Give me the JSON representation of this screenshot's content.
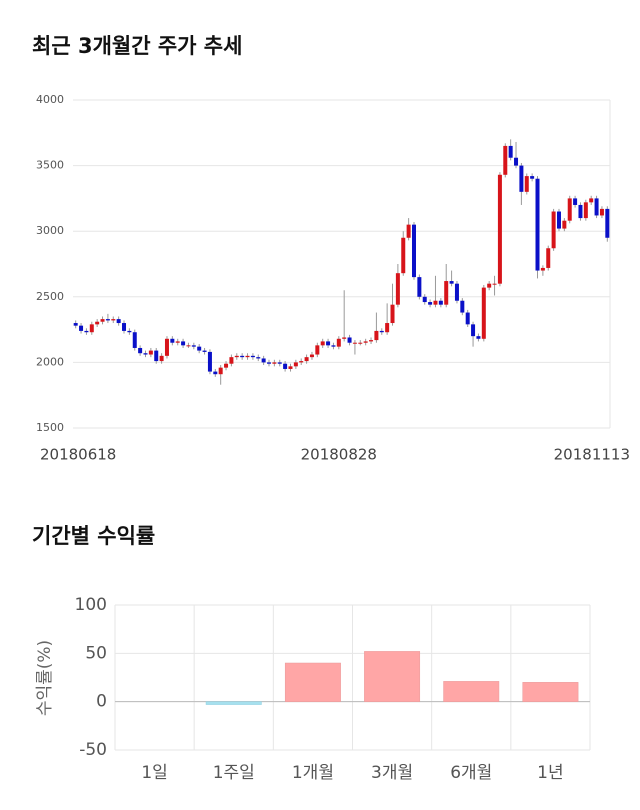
{
  "chart_data": [
    {
      "type": "candlestick",
      "title": "최근 3개월간 주가 추세",
      "categories": [
        "20180618",
        null,
        null,
        null,
        null,
        null,
        null,
        null,
        null,
        null,
        null,
        null,
        null,
        null,
        null,
        null,
        null,
        null,
        null,
        null,
        null,
        null,
        null,
        null,
        null,
        null,
        null,
        null,
        null,
        null,
        null,
        null,
        null,
        null,
        null,
        null,
        null,
        null,
        null,
        null,
        null,
        null,
        null,
        null,
        null,
        null,
        null,
        null,
        null,
        "20180828",
        null,
        null,
        null,
        null,
        null,
        null,
        null,
        null,
        null,
        null,
        null,
        null,
        null,
        null,
        null,
        null,
        null,
        null,
        null,
        null,
        null,
        null,
        null,
        null,
        null,
        null,
        null,
        null,
        null,
        null,
        null,
        null,
        null,
        null,
        null,
        null,
        null,
        null,
        null,
        null,
        null,
        null,
        null,
        null,
        null,
        null,
        null,
        null,
        null,
        "20181113"
      ],
      "open": [
        2300,
        2280,
        2240,
        2230,
        2290,
        2310,
        2330,
        2320,
        2330,
        2300,
        2240,
        2230,
        2110,
        2070,
        2060,
        2090,
        2010,
        2050,
        2180,
        2150,
        2160,
        2130,
        2130,
        2120,
        2090,
        2080,
        1930,
        1910,
        1960,
        1990,
        2040,
        2050,
        2040,
        2050,
        2040,
        2030,
        2000,
        1990,
        2000,
        1990,
        1950,
        1970,
        2000,
        2010,
        2040,
        2060,
        2130,
        2160,
        2130,
        2120,
        2180,
        2190,
        2150,
        2150,
        2150,
        2160,
        2170,
        2240,
        2230,
        2300,
        2440,
        2680,
        2950,
        3050,
        2650,
        2500,
        2460,
        2440,
        2470,
        2440,
        2620,
        2600,
        2470,
        2380,
        2290,
        2200,
        2180,
        2570,
        2600,
        2600,
        3430,
        3650,
        3560,
        3500,
        3300,
        3420,
        3400,
        2700,
        2720,
        2870,
        3150,
        3020,
        3080,
        3250,
        3200,
        3100,
        3220,
        3250,
        3120,
        3170
      ],
      "high": [
        2320,
        2300,
        2260,
        2310,
        2330,
        2350,
        2370,
        2350,
        2350,
        2320,
        2260,
        2250,
        2130,
        2090,
        2110,
        2110,
        2070,
        2200,
        2200,
        2180,
        2180,
        2150,
        2150,
        2140,
        2110,
        2100,
        1950,
        1980,
        2010,
        2060,
        2070,
        2070,
        2070,
        2070,
        2060,
        2050,
        2020,
        2020,
        2020,
        2010,
        1990,
        2020,
        2030,
        2060,
        2080,
        2150,
        2180,
        2180,
        2150,
        2200,
        2550,
        2210,
        2170,
        2170,
        2180,
        2190,
        2380,
        2260,
        2450,
        2600,
        2750,
        3000,
        3100,
        3070,
        2670,
        2520,
        2480,
        2660,
        2490,
        2750,
        2700,
        2620,
        2490,
        2400,
        2310,
        2220,
        2590,
        2620,
        2660,
        3450,
        3670,
        3700,
        3680,
        3520,
        3440,
        3440,
        3420,
        2740,
        2890,
        3170,
        3170,
        3100,
        3270,
        3270,
        3220,
        3240,
        3270,
        3270,
        3190,
        3190
      ],
      "low": [
        2260,
        2220,
        2210,
        2210,
        2270,
        2290,
        2300,
        2300,
        2280,
        2220,
        2210,
        2090,
        2050,
        2040,
        2040,
        1990,
        1990,
        2030,
        2130,
        2130,
        2110,
        2110,
        2100,
        2070,
        2060,
        1910,
        1890,
        1830,
        1940,
        1970,
        2020,
        2020,
        2020,
        2020,
        2010,
        1980,
        1970,
        1970,
        1970,
        1930,
        1930,
        1950,
        1980,
        1990,
        2020,
        2040,
        2110,
        2110,
        2100,
        2100,
        2160,
        2130,
        2060,
        2130,
        2130,
        2140,
        2150,
        2210,
        2210,
        2280,
        2420,
        2660,
        2930,
        2630,
        2480,
        2440,
        2420,
        2420,
        2420,
        2420,
        2580,
        2450,
        2360,
        2270,
        2120,
        2160,
        2160,
        2550,
        2510,
        2580,
        3410,
        3540,
        3480,
        3200,
        3280,
        3380,
        2640,
        2660,
        2700,
        2850,
        3000,
        3000,
        3060,
        3180,
        3080,
        3080,
        3200,
        3100,
        3100,
        2920
      ],
      "close": [
        2280,
        2240,
        2230,
        2290,
        2310,
        2330,
        2320,
        2330,
        2300,
        2240,
        2230,
        2110,
        2070,
        2060,
        2090,
        2010,
        2050,
        2180,
        2150,
        2160,
        2130,
        2130,
        2120,
        2090,
        2080,
        1930,
        1910,
        1960,
        1990,
        2040,
        2050,
        2040,
        2050,
        2040,
        2030,
        2000,
        1990,
        2000,
        1990,
        1950,
        1970,
        2000,
        2010,
        2040,
        2060,
        2130,
        2160,
        2130,
        2120,
        2180,
        2190,
        2150,
        2150,
        2150,
        2160,
        2170,
        2240,
        2230,
        2300,
        2440,
        2680,
        2950,
        3050,
        2650,
        2500,
        2460,
        2440,
        2470,
        2440,
        2620,
        2600,
        2470,
        2380,
        2290,
        2200,
        2180,
        2570,
        2600,
        2600,
        3430,
        3650,
        3560,
        3500,
        3300,
        3420,
        3400,
        2700,
        2720,
        2870,
        3150,
        3020,
        3080,
        3250,
        3200,
        3100,
        3220,
        3250,
        3120,
        3170,
        2950
      ],
      "up_color": "#d7141a",
      "down_color": "#0a10c8",
      "ylim": [
        1500,
        4000
      ],
      "yticks": [
        1500,
        2000,
        2500,
        3000,
        3500,
        4000
      ],
      "grid": true
    },
    {
      "type": "bar",
      "title": "기간별 수익률",
      "y_label": "수익률(%)",
      "categories": [
        "1일",
        "1주일",
        "1개월",
        "3개월",
        "6개월",
        "1년"
      ],
      "values": [
        0,
        -3,
        40,
        52,
        21,
        20
      ],
      "positive_color": "#ffa6a6",
      "negative_color": "#a6e0ee",
      "ylim": [
        -50,
        100
      ],
      "yticks": [
        -50,
        0,
        50,
        100
      ],
      "grid": true
    }
  ]
}
